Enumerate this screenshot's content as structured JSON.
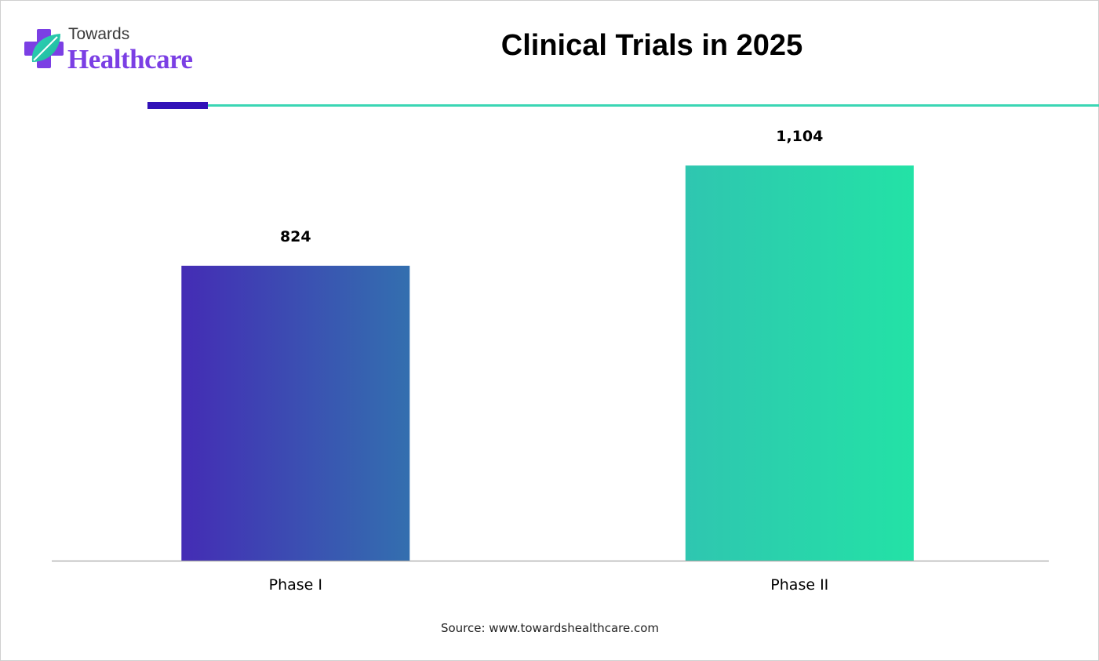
{
  "brand": {
    "name_top": "Towards",
    "name_bottom": "Healthcare",
    "icon": "medical-cross-leaf-icon",
    "colors": {
      "purple": "#7b3fe4",
      "teal": "#2ed3b7"
    }
  },
  "header": {
    "accent_dark": "#3212b8",
    "accent_teal": "#3ad6b4"
  },
  "chart_data": {
    "type": "bar",
    "title": "Clinical Trials in 2025",
    "categories": [
      "Phase I",
      "Phase II"
    ],
    "values": [
      824,
      1104
    ],
    "value_labels": [
      "824",
      "1,104"
    ],
    "xlabel": "",
    "ylabel": "",
    "ylim": [
      0,
      1250
    ],
    "grid": false,
    "legend": "none",
    "bar_gradients": [
      [
        "#442cb5",
        "#336faf"
      ],
      [
        "#2fc6b0",
        "#23e2a6"
      ]
    ]
  },
  "footer": {
    "source": "Source: www.towardshealthcare.com"
  }
}
